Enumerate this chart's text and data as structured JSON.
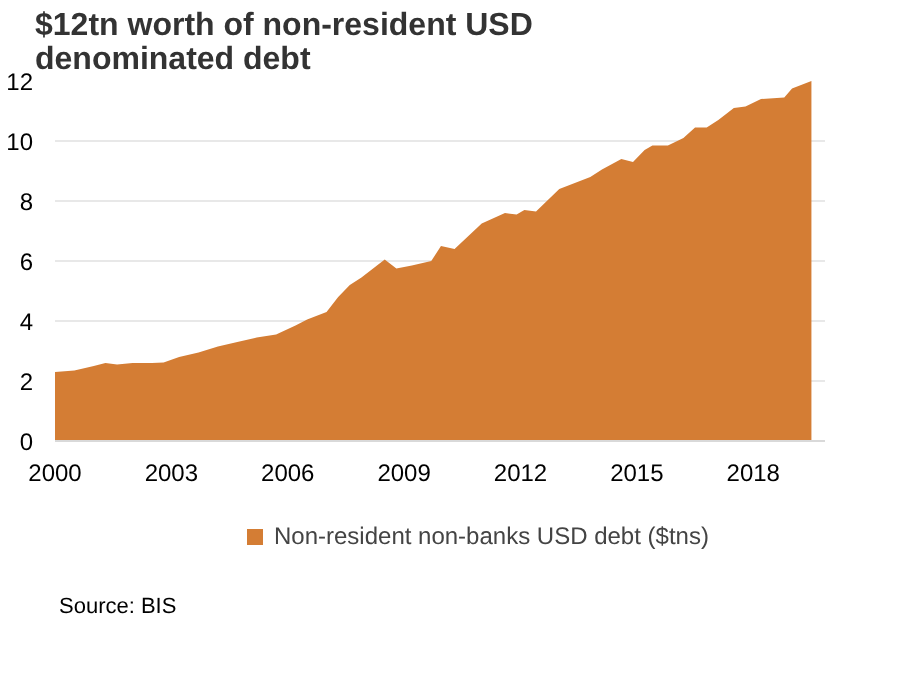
{
  "chart_data": {
    "type": "area",
    "title": "$12tn worth of non-resident USD denominated debt",
    "x": [
      2000,
      2000.5,
      2001,
      2001.3,
      2001.6,
      2002,
      2002.5,
      2002.8,
      2003.2,
      2003.7,
      2004.2,
      2004.7,
      2005.2,
      2005.7,
      2006.2,
      2006.5,
      2007,
      2007.3,
      2007.6,
      2007.9,
      2008.5,
      2008.8,
      2009.2,
      2009.7,
      2009.95,
      2010.3,
      2011,
      2011.6,
      2011.9,
      2012.1,
      2012.4,
      2013,
      2013.8,
      2014.1,
      2014.6,
      2014.9,
      2015.2,
      2015.4,
      2015.8,
      2016.2,
      2016.5,
      2016.8,
      2017.1,
      2017.5,
      2017.8,
      2018.2,
      2018.8,
      2019,
      2019.5
    ],
    "series": [
      {
        "name": "Non-resident non-banks USD debt ($tns)",
        "color": "#d47d34",
        "values": [
          2.3,
          2.35,
          2.5,
          2.6,
          2.55,
          2.6,
          2.6,
          2.62,
          2.8,
          2.95,
          3.15,
          3.3,
          3.45,
          3.55,
          3.85,
          4.05,
          4.3,
          4.8,
          5.2,
          5.45,
          6.05,
          5.75,
          5.85,
          6.0,
          6.5,
          6.4,
          7.25,
          7.6,
          7.55,
          7.7,
          7.65,
          8.4,
          8.8,
          9.05,
          9.4,
          9.3,
          9.7,
          9.85,
          9.85,
          10.1,
          10.45,
          10.45,
          10.7,
          11.1,
          11.15,
          11.4,
          11.45,
          11.75,
          12.0
        ]
      }
    ],
    "xlim": [
      2000,
      2019.85
    ],
    "xticks": [
      2000,
      2003,
      2006,
      2009,
      2012,
      2015,
      2018
    ],
    "ylim": [
      0,
      12
    ],
    "yticks": [
      0,
      2,
      4,
      6,
      8,
      10,
      12
    ],
    "grid": "y",
    "legend": "bottom",
    "annotations": [
      "Source: BIS"
    ]
  }
}
